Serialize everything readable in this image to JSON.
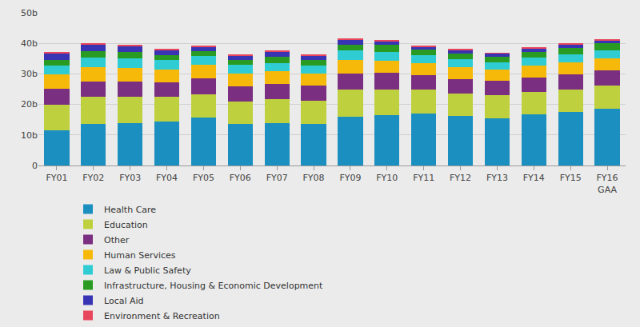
{
  "chart_data": {
    "type": "bar",
    "stacked": true,
    "grid": true,
    "legend": "bottom",
    "categories": [
      "FY01",
      "FY02",
      "FY03",
      "FY04",
      "FY05",
      "FY06",
      "FY07",
      "FY08",
      "FY09",
      "FY10",
      "FY11",
      "FY12",
      "FY13",
      "FY14",
      "FY15",
      "FY16 GAA"
    ],
    "ylim": [
      0,
      50
    ],
    "yticks": [
      0,
      {
        "value": 10,
        "label": "10b"
      },
      {
        "value": 20,
        "label": "20b"
      },
      {
        "value": 30,
        "label": "30b"
      },
      {
        "value": 40,
        "label": "40b"
      },
      {
        "value": 50,
        "label": "50b"
      }
    ],
    "series": [
      {
        "name": "Health Care",
        "color": "#1a8fc0",
        "values": [
          11.4,
          13.5,
          13.8,
          14.5,
          15.7,
          13.5,
          14.0,
          13.6,
          16.0,
          16.6,
          16.9,
          16.3,
          15.5,
          16.7,
          17.5,
          18.5
        ]
      },
      {
        "name": "Education",
        "color": "#bfd03f",
        "values": [
          8.6,
          9.1,
          8.8,
          7.9,
          7.6,
          7.5,
          7.7,
          7.5,
          8.8,
          8.4,
          7.9,
          7.3,
          7.5,
          7.4,
          7.5,
          7.8
        ]
      },
      {
        "name": "Other",
        "color": "#7a2f80",
        "values": [
          5.1,
          5.0,
          4.8,
          4.7,
          5.2,
          4.9,
          5.0,
          5.0,
          5.3,
          5.3,
          4.7,
          4.7,
          4.7,
          4.8,
          4.9,
          4.8
        ]
      },
      {
        "name": "Human Services",
        "color": "#f6b90a",
        "values": [
          4.7,
          4.5,
          4.6,
          4.3,
          4.4,
          4.2,
          4.1,
          3.9,
          4.5,
          4.1,
          3.9,
          3.9,
          3.6,
          3.9,
          3.8,
          4.0
        ]
      },
      {
        "name": "Law & Public Safety",
        "color": "#2fccd4",
        "values": [
          2.8,
          3.3,
          3.2,
          3.1,
          2.9,
          2.9,
          2.8,
          2.8,
          3.2,
          2.9,
          2.7,
          2.7,
          2.6,
          2.6,
          2.6,
          2.6
        ]
      },
      {
        "name": "Infrastructure, Housing & Economic Development",
        "color": "#2a9b22",
        "values": [
          1.9,
          2.0,
          1.9,
          1.7,
          1.7,
          1.6,
          1.9,
          1.7,
          1.8,
          2.1,
          1.9,
          1.7,
          1.7,
          1.9,
          2.3,
          2.3
        ]
      },
      {
        "name": "Local Aid",
        "color": "#3934b4",
        "values": [
          2.4,
          2.3,
          2.0,
          1.7,
          1.5,
          1.5,
          1.9,
          1.6,
          1.7,
          1.3,
          1.0,
          1.2,
          1.1,
          1.1,
          1.0,
          1.0
        ]
      },
      {
        "name": "Environment & Recreation",
        "color": "#e8465c",
        "values": [
          0.2,
          0.3,
          0.2,
          0.2,
          0.3,
          0.2,
          0.2,
          0.2,
          0.3,
          0.2,
          0.2,
          0.2,
          0.2,
          0.2,
          0.2,
          0.2
        ]
      }
    ]
  }
}
